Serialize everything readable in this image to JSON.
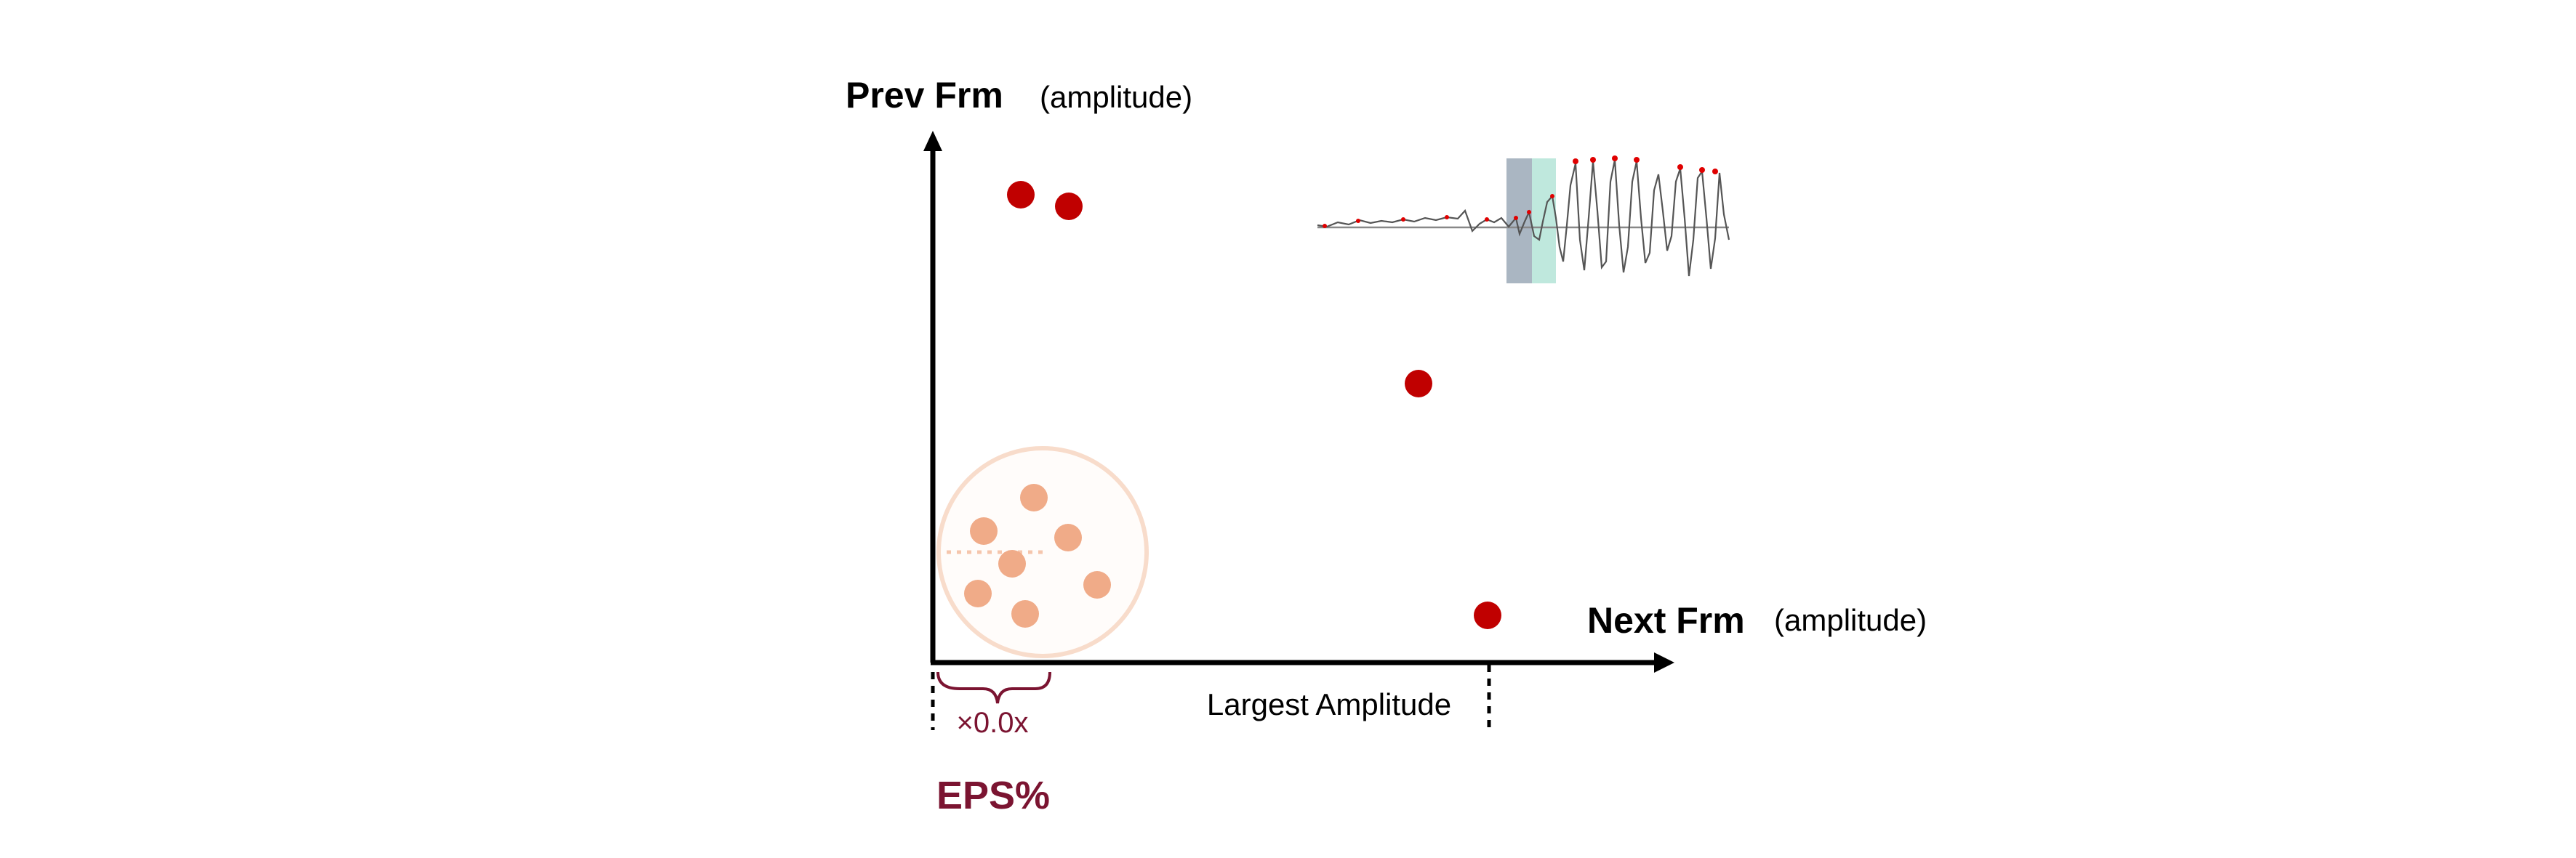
{
  "y_axis": {
    "title": "Prev Frm",
    "unit": "(amplitude)"
  },
  "x_axis": {
    "title": "Next Frm",
    "unit": "(amplitude)"
  },
  "largest_amplitude_label": "Largest Amplitude",
  "eps": {
    "multiplier": "×0.0x",
    "label": "EPS%"
  },
  "colors": {
    "axis": "#000000",
    "outlier_dot": "#c00000",
    "cluster_dot": "#f0ab88",
    "cluster_ring": "#f8dccb",
    "eps_accent": "#7b1431",
    "waveform_gray_band": "#aab6c2",
    "waveform_teal_band": "#bfe8dd"
  },
  "icons": {
    "waveform": "waveform-thumbnail-icon"
  }
}
